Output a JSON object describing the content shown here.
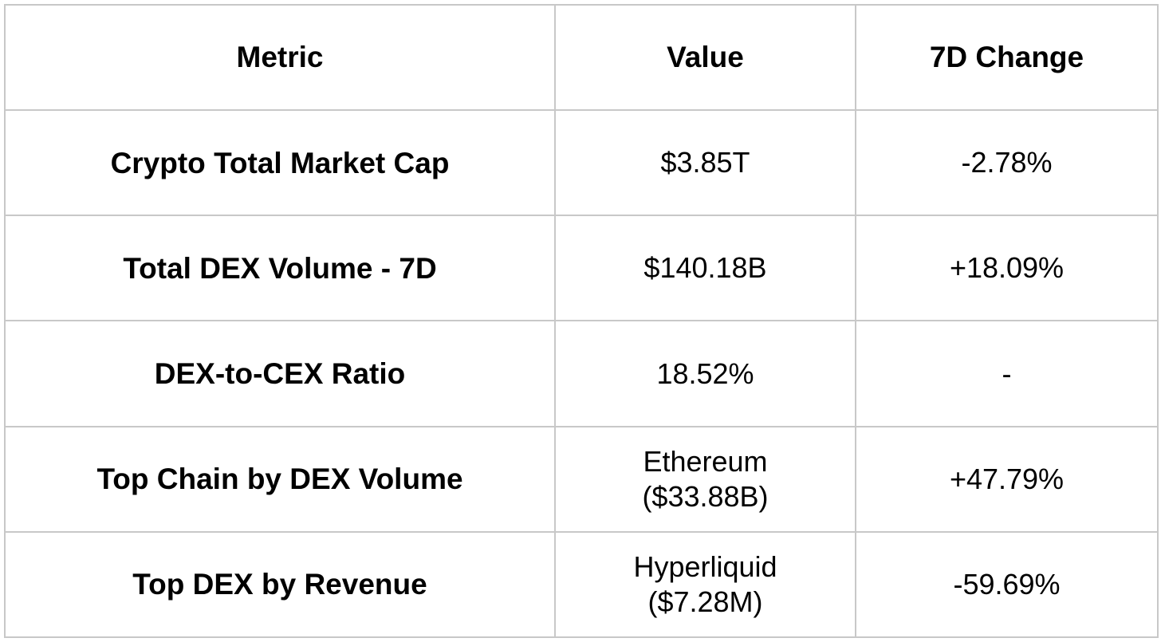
{
  "table": {
    "headers": {
      "metric": "Metric",
      "value": "Value",
      "change": "7D Change"
    },
    "rows": [
      {
        "metric": "Crypto Total Market Cap",
        "value_lines": [
          "$3.85T"
        ],
        "change": "-2.78%"
      },
      {
        "metric": "Total DEX Volume - 7D",
        "value_lines": [
          "$140.18B"
        ],
        "change": "+18.09%"
      },
      {
        "metric": "DEX-to-CEX Ratio",
        "value_lines": [
          "18.52%"
        ],
        "change": "-"
      },
      {
        "metric": "Top Chain by DEX Volume",
        "value_lines": [
          "Ethereum",
          "($33.88B)"
        ],
        "change": "+47.79%"
      },
      {
        "metric": "Top DEX by Revenue",
        "value_lines": [
          "Hyperliquid",
          "($7.28M)"
        ],
        "change": "-59.69%"
      }
    ]
  },
  "colors": {
    "border": "#c8c8c8",
    "text": "#000000",
    "background": "#ffffff"
  }
}
